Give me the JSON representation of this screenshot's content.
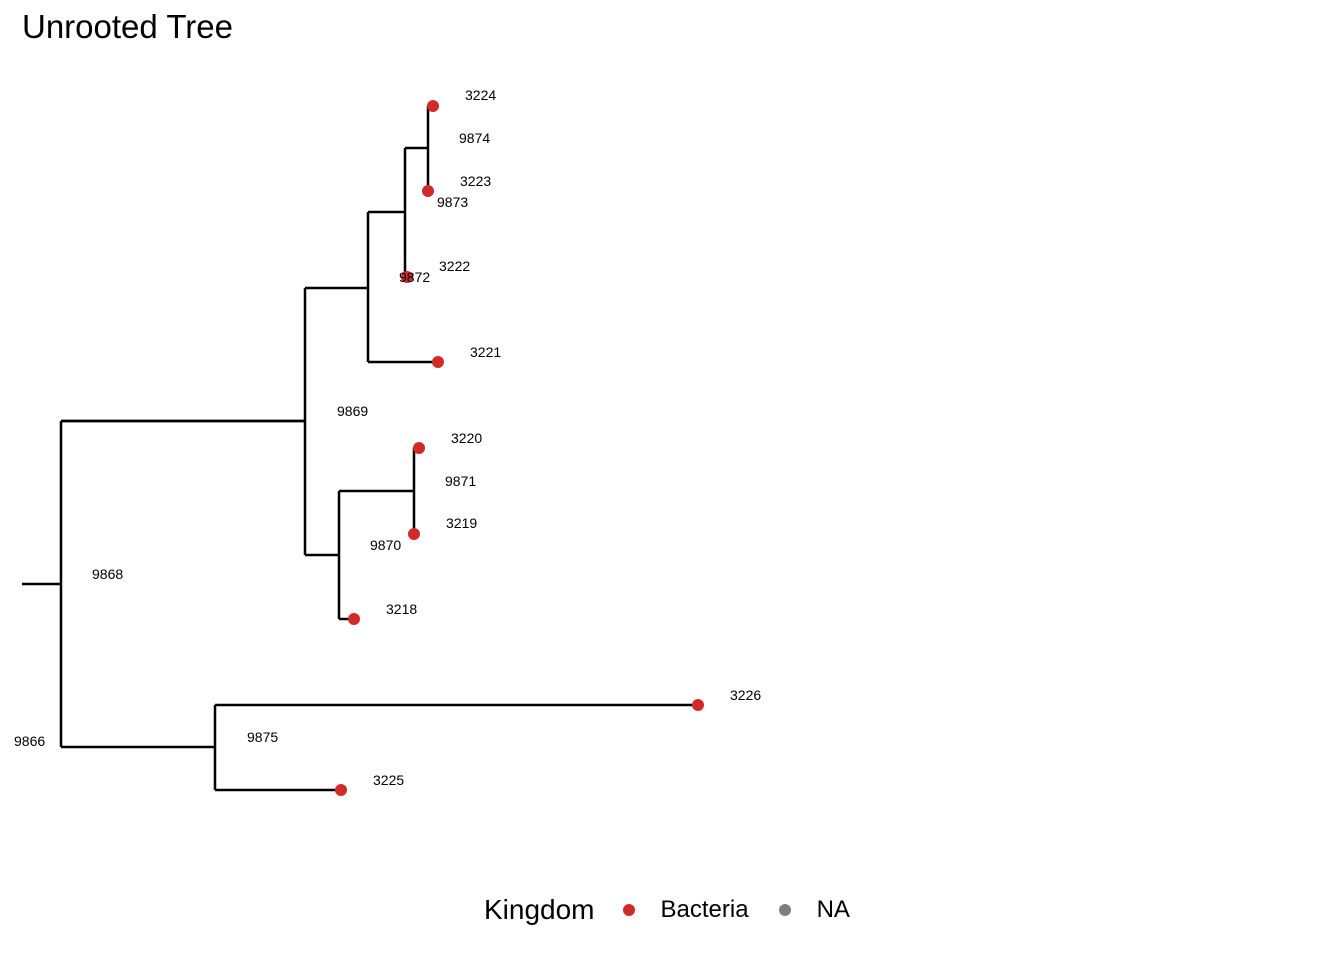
{
  "title": "Unrooted Tree",
  "legend": {
    "title": "Kingdom",
    "items": [
      {
        "label": "Bacteria",
        "color": "#d12a2a"
      },
      {
        "label": "NA",
        "color": "#7f7f7f"
      }
    ]
  },
  "tree": {
    "edge_color": "#000000",
    "tip_color": "#d12a2a",
    "nodes": [
      {
        "id": "9866",
        "label": "9866"
      },
      {
        "id": "9868",
        "label": "9868",
        "parent": "9866"
      },
      {
        "id": "9875",
        "label": "9875",
        "parent": "9866"
      },
      {
        "id": "9869",
        "label": "9869",
        "parent": "9868"
      },
      {
        "id": "9872",
        "label": "9872",
        "parent": "9869"
      },
      {
        "id": "9873",
        "label": "9873",
        "parent": "9872"
      },
      {
        "id": "9874",
        "label": "9874",
        "parent": "9873"
      },
      {
        "id": "3224",
        "label": "3224",
        "parent": "9874",
        "tip": true
      },
      {
        "id": "3223",
        "label": "3223",
        "parent": "9874",
        "tip": true
      },
      {
        "id": "3222",
        "label": "3222",
        "parent": "9873",
        "tip": true
      },
      {
        "id": "3221",
        "label": "3221",
        "parent": "9872",
        "tip": true
      },
      {
        "id": "9870",
        "label": "9870",
        "parent": "9869"
      },
      {
        "id": "9871",
        "label": "9871",
        "parent": "9870"
      },
      {
        "id": "3220",
        "label": "3220",
        "parent": "9871",
        "tip": true
      },
      {
        "id": "3219",
        "label": "3219",
        "parent": "9871",
        "tip": true
      },
      {
        "id": "3218",
        "label": "3218",
        "parent": "9870",
        "tip": true
      },
      {
        "id": "3226",
        "label": "3226",
        "parent": "9875",
        "tip": true
      },
      {
        "id": "3225",
        "label": "3225",
        "parent": "9875",
        "tip": true
      }
    ]
  }
}
